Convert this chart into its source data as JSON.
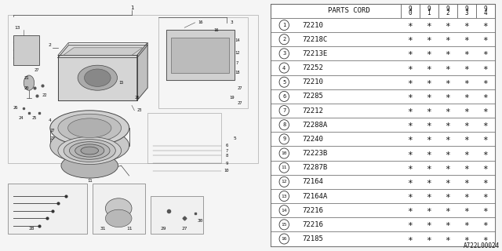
{
  "background_color": "#f0f0f0",
  "diagram_label": "A722L00024",
  "table": {
    "header_col": "PARTS CORD",
    "year_cols": [
      "90",
      "91",
      "92",
      "93",
      "94"
    ],
    "rows": [
      {
        "num": 1,
        "code": "72210"
      },
      {
        "num": 2,
        "code": "72218C"
      },
      {
        "num": 3,
        "code": "72213E"
      },
      {
        "num": 4,
        "code": "72252"
      },
      {
        "num": 5,
        "code": "72210"
      },
      {
        "num": 6,
        "code": "72285"
      },
      {
        "num": 7,
        "code": "72212"
      },
      {
        "num": 8,
        "code": "72288A"
      },
      {
        "num": 9,
        "code": "72240"
      },
      {
        "num": 10,
        "code": "72223B"
      },
      {
        "num": 11,
        "code": "72287B"
      },
      {
        "num": 12,
        "code": "72164"
      },
      {
        "num": 13,
        "code": "72164A"
      },
      {
        "num": 14,
        "code": "72216"
      },
      {
        "num": 15,
        "code": "72216"
      },
      {
        "num": 16,
        "code": "72185"
      }
    ]
  },
  "table_split": 0.525,
  "line_color": "#555555",
  "text_color": "#111111",
  "grid_color": "#888888"
}
